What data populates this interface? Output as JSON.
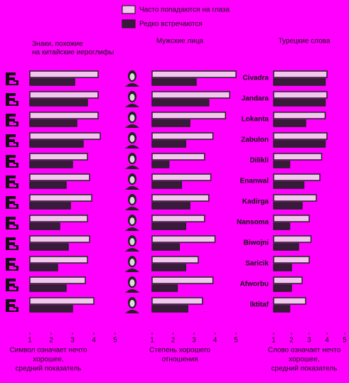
{
  "chart_data": [
    {
      "type": "bar",
      "orientation": "horizontal",
      "title": [
        "Знаки, похожие",
        "на китайские иероглифы"
      ],
      "xlabel": [
        "Символ означает нечто",
        "хорошее,",
        "средний показатель"
      ],
      "categories": [
        null,
        null,
        null,
        null,
        null,
        null,
        null,
        null,
        null,
        null,
        null,
        null
      ],
      "series": [
        {
          "name": "Часто попадаются на глаза",
          "color": "#f2c6ef",
          "values": [
            4.2,
            4.2,
            4.2,
            4.3,
            3.7,
            3.8,
            3.9,
            3.7,
            3.8,
            3.7,
            3.6,
            4.0
          ]
        },
        {
          "name": "Редко встречаются",
          "color": "#3a1a3a",
          "values": [
            3.1,
            3.7,
            3.2,
            3.5,
            3.0,
            2.7,
            2.9,
            2.4,
            2.8,
            2.3,
            2.7,
            3.0
          ]
        }
      ],
      "xlim": [
        1,
        5
      ],
      "xticks": [
        1,
        2,
        3,
        4,
        5
      ]
    },
    {
      "type": "bar",
      "orientation": "horizontal",
      "title": [
        "Мужские лица"
      ],
      "xlabel": [
        "Степень хорошего",
        "отношения"
      ],
      "categories": [
        null,
        null,
        null,
        null,
        null,
        null,
        null,
        null,
        null,
        null,
        null,
        null
      ],
      "series": [
        {
          "color": "#f2c6ef",
          "values": [
            5.0,
            4.7,
            4.5,
            3.9,
            3.5,
            3.8,
            3.7,
            3.5,
            4.0,
            3.2,
            3.9,
            3.4
          ]
        },
        {
          "color": "#3a1a3a",
          "values": [
            3.1,
            3.7,
            2.8,
            2.6,
            1.8,
            2.4,
            2.8,
            2.6,
            2.3,
            2.6,
            2.2,
            2.7
          ]
        }
      ],
      "xlim": [
        1,
        5
      ],
      "xticks": [
        1,
        2,
        3,
        4,
        5
      ]
    },
    {
      "type": "bar",
      "orientation": "horizontal",
      "title": [
        "Турецкие слова"
      ],
      "xlabel": [
        "Слово означает нечто",
        "хорошее,",
        "средний показатель"
      ],
      "categories": [
        "Civadra",
        "Jandara",
        "Lokanta",
        "Zabulon",
        "Dilikli",
        "Enanwal",
        "Kadirga",
        "Nansoma",
        "Biwojni",
        "Saricik",
        "Afworbu",
        "Iktitaf"
      ],
      "series": [
        {
          "color": "#f2c6ef",
          "values": [
            4.0,
            4.0,
            3.9,
            4.0,
            3.7,
            3.6,
            3.4,
            3.0,
            3.1,
            3.0,
            2.6,
            2.8
          ]
        },
        {
          "color": "#3a1a3a",
          "values": [
            3.9,
            3.9,
            2.8,
            3.9,
            1.9,
            2.7,
            2.6,
            1.9,
            2.4,
            2.0,
            2.0,
            1.9
          ]
        }
      ],
      "xlim": [
        1,
        5
      ],
      "xticks": [
        1,
        2,
        3,
        4,
        5
      ]
    }
  ]
}
